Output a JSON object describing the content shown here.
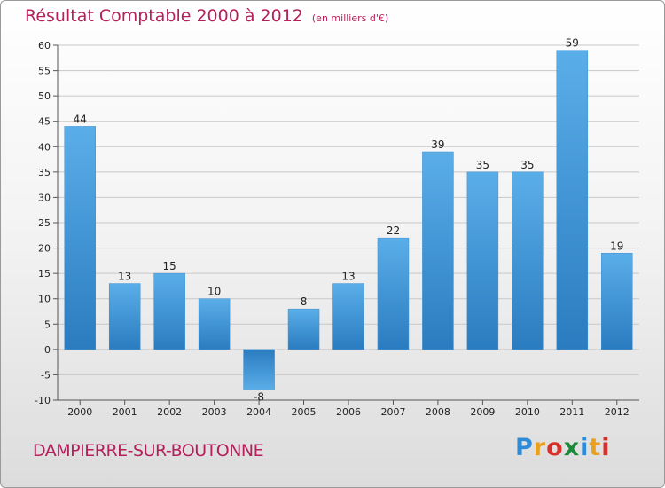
{
  "chart_data": {
    "type": "bar",
    "title": "Résultat Comptable 2000 à 2012",
    "subtitle": "(en milliers d'€)",
    "categories": [
      "2000",
      "2001",
      "2002",
      "2003",
      "2004",
      "2005",
      "2006",
      "2007",
      "2008",
      "2009",
      "2010",
      "2011",
      "2012"
    ],
    "values": [
      44,
      13,
      15,
      10,
      -8,
      8,
      13,
      22,
      39,
      35,
      35,
      59,
      19
    ],
    "ylim": [
      -10,
      60
    ],
    "yticks": [
      -10,
      -5,
      0,
      5,
      10,
      15,
      20,
      25,
      30,
      35,
      40,
      45,
      50,
      55,
      60
    ],
    "grid": true,
    "xlabel": "",
    "ylabel": "",
    "bar_color_top": "#5aaee8",
    "bar_color_bottom": "#2a7cc0"
  },
  "footer": {
    "town": "DAMPIERRE-SUR-BOUTONNE",
    "brand_letters": [
      "P",
      "r",
      "o",
      "x",
      "i",
      "t",
      "i"
    ],
    "brand_colors": [
      "#2e8bd8",
      "#e8a020",
      "#d8302a",
      "#1a8a3a",
      "#2e8bd8",
      "#e8a020",
      "#d8302a"
    ]
  },
  "colors": {
    "title": "#b5205a",
    "grid": "#c8c8c8",
    "axis": "#555555"
  }
}
